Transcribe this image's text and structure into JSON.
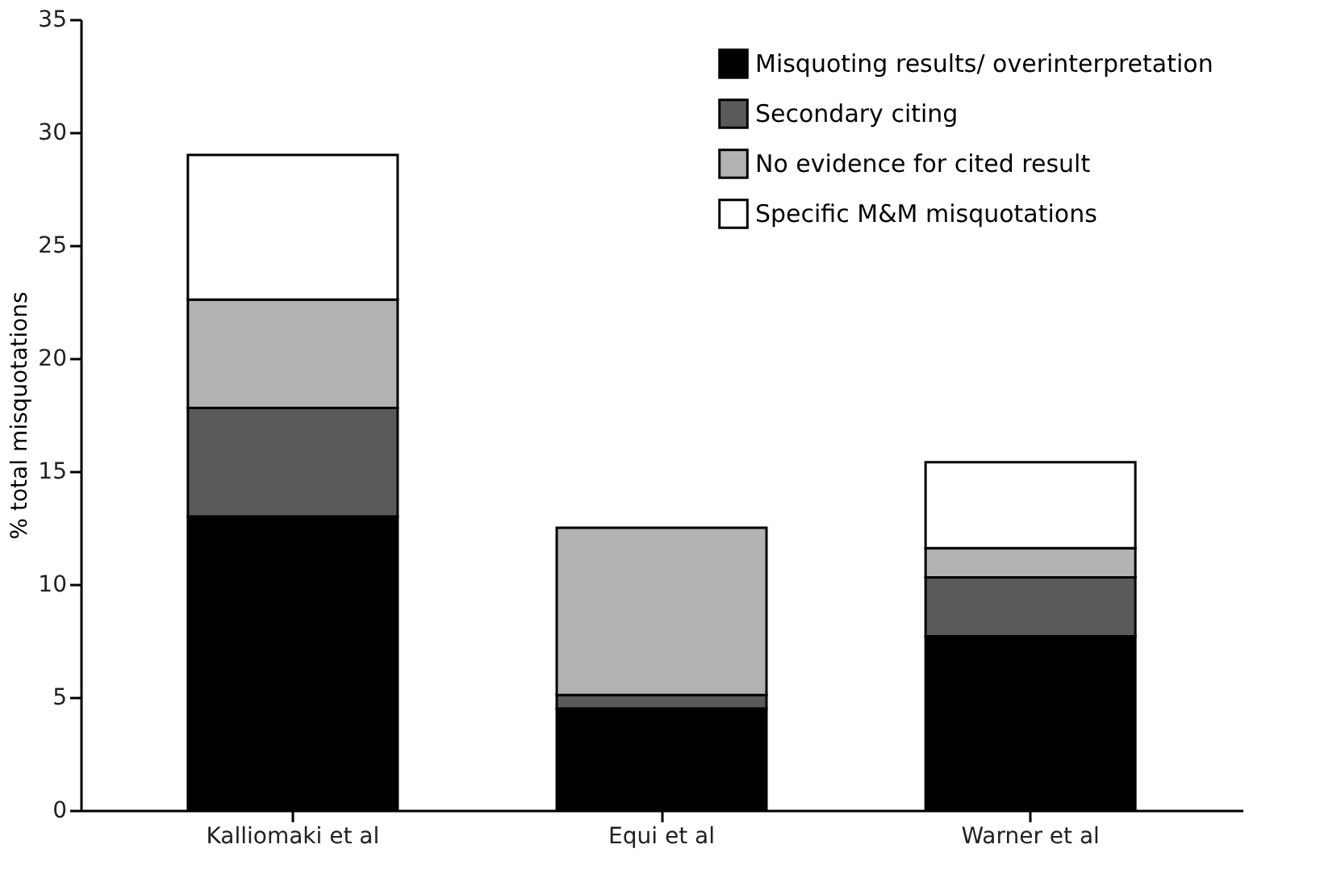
{
  "chart_data": {
    "type": "bar",
    "stacked": true,
    "ylabel": "% total misquotations",
    "categories": [
      "Kalliomaki et al",
      "Equi et al",
      "Warner et al"
    ],
    "series": [
      {
        "name": "Misquoting results/ overinterpretation",
        "color": "#000000",
        "values": [
          13.0,
          4.5,
          7.7
        ]
      },
      {
        "name": "Secondary citing",
        "color": "#5a5a5a",
        "values": [
          4.8,
          0.6,
          2.6
        ]
      },
      {
        "name": "No evidence for cited result",
        "color": "#b2b2b2",
        "values": [
          4.8,
          7.4,
          1.3
        ]
      },
      {
        "name": "Specific M&M misquotations",
        "color": "#ffffff",
        "values": [
          6.4,
          null,
          3.8
        ]
      }
    ],
    "ylim": [
      0,
      35
    ],
    "yticks": [
      0,
      5,
      10,
      15,
      20,
      25,
      30,
      35
    ],
    "grid": false,
    "legend": "top right"
  }
}
